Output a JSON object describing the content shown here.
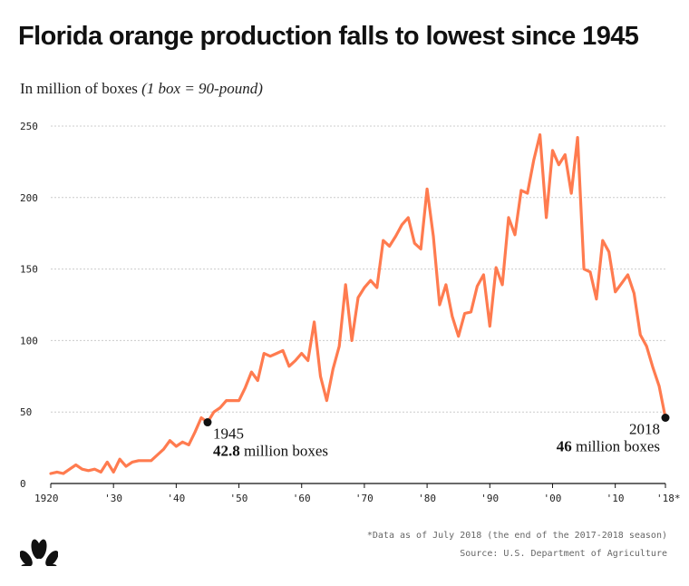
{
  "title": "Florida orange production falls to lowest since 1945",
  "subtitle_main": "In million of boxes ",
  "subtitle_note": "(1 box = 90-pound)",
  "colors": {
    "line": "#ff7b4f",
    "grid": "#cccccc",
    "text": "#111111",
    "footnote": "#666666"
  },
  "logo_icon": "nbc-peacock-icon",
  "footnote": "*Data as of July 2018 (the end of the 2017-2018 season)",
  "source": "Source: U.S. Department of Agriculture",
  "chart_data": {
    "type": "line",
    "title": "Florida orange production falls to lowest since 1945",
    "ylabel": "In million of boxes (1 box = 90-pound)",
    "xlim": [
      1920,
      2018
    ],
    "ylim": [
      0,
      250
    ],
    "grid": true,
    "y_ticks": [
      {
        "value": 0,
        "label": "0"
      },
      {
        "value": 50,
        "label": "50"
      },
      {
        "value": 100,
        "label": "100"
      },
      {
        "value": 150,
        "label": "150"
      },
      {
        "value": 200,
        "label": "200"
      },
      {
        "value": 250,
        "label": "250"
      }
    ],
    "x_ticks": [
      {
        "value": 1920,
        "label": "1920"
      },
      {
        "value": 1930,
        "label": "'30"
      },
      {
        "value": 1940,
        "label": "'40"
      },
      {
        "value": 1950,
        "label": "'50"
      },
      {
        "value": 1960,
        "label": "'60"
      },
      {
        "value": 1970,
        "label": "'70"
      },
      {
        "value": 1980,
        "label": "'80"
      },
      {
        "value": 1990,
        "label": "'90"
      },
      {
        "value": 2000,
        "label": "'00"
      },
      {
        "value": 2010,
        "label": "'10"
      },
      {
        "value": 2018,
        "label": "'18*"
      }
    ],
    "x": [
      1920,
      1921,
      1922,
      1923,
      1924,
      1925,
      1926,
      1927,
      1928,
      1929,
      1930,
      1931,
      1932,
      1933,
      1934,
      1935,
      1936,
      1937,
      1938,
      1939,
      1940,
      1941,
      1942,
      1943,
      1944,
      1945,
      1946,
      1947,
      1948,
      1949,
      1950,
      1951,
      1952,
      1953,
      1954,
      1955,
      1956,
      1957,
      1958,
      1959,
      1960,
      1961,
      1962,
      1963,
      1964,
      1965,
      1966,
      1967,
      1968,
      1969,
      1970,
      1971,
      1972,
      1973,
      1974,
      1975,
      1976,
      1977,
      1978,
      1979,
      1980,
      1981,
      1982,
      1983,
      1984,
      1985,
      1986,
      1987,
      1988,
      1989,
      1990,
      1991,
      1992,
      1993,
      1994,
      1995,
      1996,
      1997,
      1998,
      1999,
      2000,
      2001,
      2002,
      2003,
      2004,
      2005,
      2006,
      2007,
      2008,
      2009,
      2010,
      2011,
      2012,
      2013,
      2014,
      2015,
      2016,
      2017,
      2018
    ],
    "values": [
      7,
      8,
      7,
      10,
      13,
      10,
      9,
      10,
      8,
      15,
      8,
      17,
      12,
      15,
      16,
      16,
      16,
      20,
      24,
      30,
      26,
      29,
      27,
      36,
      46,
      42.8,
      50,
      53,
      58,
      58,
      58,
      67,
      78,
      72,
      91,
      89,
      91,
      93,
      82,
      86,
      91,
      86,
      113,
      75,
      58,
      80,
      96,
      139,
      100,
      130,
      137,
      142,
      137,
      170,
      166,
      173,
      181,
      186,
      168,
      164,
      206,
      173,
      125,
      139,
      117,
      103,
      119,
      120,
      138,
      146,
      110,
      151,
      139,
      186,
      174,
      205,
      203,
      226,
      244,
      186,
      233,
      223,
      230,
      203,
      242,
      150,
      148,
      129,
      170,
      162,
      134,
      140,
      146,
      133,
      104,
      96,
      81,
      68,
      46
    ],
    "annotations": [
      {
        "x": 1945,
        "y": 42.8,
        "year": "1945",
        "value_bold": "42.8",
        "value_rest": " million boxes"
      },
      {
        "x": 2018,
        "y": 46,
        "year": "2018",
        "value_bold": "46",
        "value_rest": " million boxes"
      }
    ]
  }
}
